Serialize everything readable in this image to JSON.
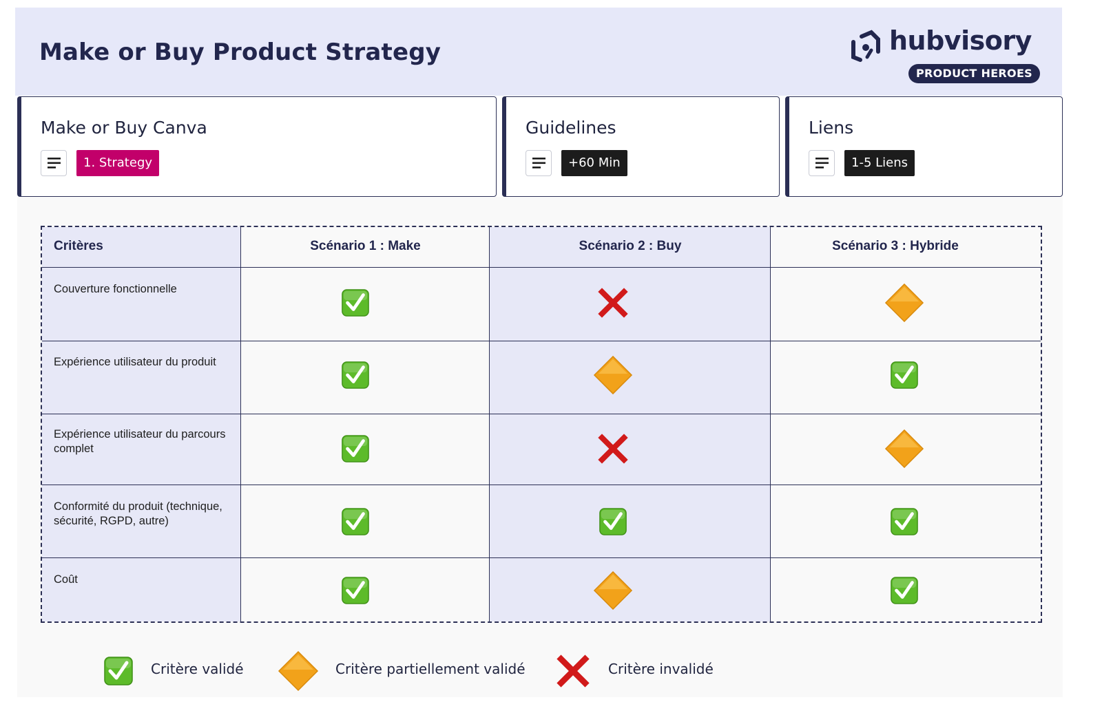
{
  "header": {
    "title": "Make or Buy Product Strategy",
    "logo_word": "hubvisory",
    "logo_badge": "PRODUCT HEROES"
  },
  "cards": [
    {
      "title": "Make or Buy Canva",
      "tag": "1. Strategy",
      "tag_color": "#c2006a"
    },
    {
      "title": "Guidelines",
      "tag": "+60 Min",
      "tag_color": "#1c1c1c"
    },
    {
      "title": "Liens",
      "tag": "1-5 Liens",
      "tag_color": "#1c1c1c"
    }
  ],
  "table": {
    "headers": [
      "Critères",
      "Scénario 1 : Make",
      "Scénario 2 : Buy",
      "Scénario 3 : Hybride"
    ],
    "rows": [
      {
        "criterion": "Couverture fonctionnelle",
        "make": "check",
        "buy": "cross",
        "hybrid": "diamond"
      },
      {
        "criterion": "Expérience utilisateur du produit",
        "make": "check",
        "buy": "diamond",
        "hybrid": "check"
      },
      {
        "criterion": "Expérience utilisateur du parcours complet",
        "make": "check",
        "buy": "cross",
        "hybrid": "diamond"
      },
      {
        "criterion": "Conformité du produit (technique, sécurité, RGPD, autre)",
        "make": "check",
        "buy": "check",
        "hybrid": "check"
      },
      {
        "criterion": "Coût",
        "make": "check",
        "buy": "diamond",
        "hybrid": "check"
      }
    ]
  },
  "legend": {
    "valid": "Critère validé",
    "partial": "Critère partiellement validé",
    "invalid": "Critère invalidé"
  },
  "colors": {
    "header_bg": "#e6e8f9",
    "navy": "#22264d",
    "tinted_column": "#e7e8f7",
    "check_green": "#5dbb2a",
    "cross_red": "#d11a1a",
    "diamond_orange": "#f2a21a"
  },
  "icons": {
    "check": "check-mark-button-icon",
    "cross": "cross-mark-icon",
    "diamond": "orange-diamond-icon",
    "menu": "menu-lines-icon"
  }
}
